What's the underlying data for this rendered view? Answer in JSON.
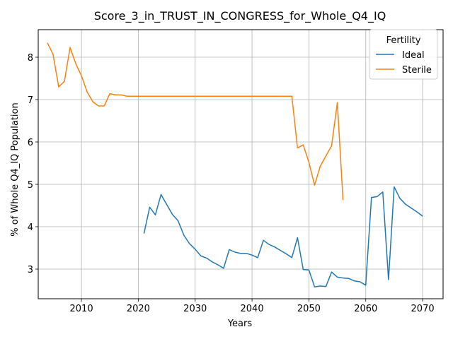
{
  "chart_data": {
    "type": "line",
    "title": "Score_3_in_TRUST_IN_CONGRESS_for_Whole_Q4_IQ",
    "xlabel": "Years",
    "ylabel": "% of Whole Q4_IQ Population",
    "xlim": [
      2002.4,
      2073.6
    ],
    "ylim": [
      2.3,
      8.65
    ],
    "xticks": [
      2010,
      2020,
      2030,
      2040,
      2050,
      2060,
      2070
    ],
    "yticks": [
      3,
      4,
      5,
      6,
      7,
      8
    ],
    "grid": true,
    "legend": {
      "title": "Fertility",
      "position": "top-right"
    },
    "series": [
      {
        "name": "Ideal",
        "color": "#1f77b4",
        "x": [
          2021,
          2022,
          2023,
          2024,
          2025,
          2026,
          2027,
          2028,
          2029,
          2030,
          2031,
          2032,
          2033,
          2034,
          2035,
          2036,
          2037,
          2038,
          2039,
          2040,
          2041,
          2042,
          2043,
          2044,
          2045,
          2046,
          2047,
          2048,
          2049,
          2050,
          2051,
          2052,
          2053,
          2054,
          2055,
          2056,
          2057,
          2058,
          2059,
          2060,
          2061,
          2062,
          2063,
          2064,
          2065,
          2066,
          2067,
          2068,
          2069,
          2070
        ],
        "y": [
          3.84,
          4.46,
          4.28,
          4.76,
          4.52,
          4.29,
          4.14,
          3.8,
          3.6,
          3.47,
          3.31,
          3.26,
          3.17,
          3.1,
          3.02,
          3.46,
          3.4,
          3.37,
          3.37,
          3.33,
          3.27,
          3.68,
          3.58,
          3.52,
          3.44,
          3.36,
          3.27,
          3.74,
          2.99,
          2.98,
          2.58,
          2.6,
          2.59,
          2.93,
          2.81,
          2.79,
          2.78,
          2.72,
          2.7,
          2.62,
          4.69,
          4.71,
          4.82,
          2.75,
          4.94,
          4.67,
          4.53,
          4.44,
          4.35,
          4.25
        ]
      },
      {
        "name": "Sterile",
        "color": "#ff7f0e",
        "x": [
          2004,
          2005,
          2006,
          2007,
          2008,
          2009,
          2010,
          2011,
          2012,
          2013,
          2014,
          2015,
          2016,
          2017,
          2018,
          2019,
          2020,
          2021,
          2022,
          2023,
          2024,
          2025,
          2026,
          2027,
          2028,
          2029,
          2030,
          2031,
          2032,
          2033,
          2034,
          2035,
          2036,
          2037,
          2038,
          2039,
          2040,
          2041,
          2042,
          2043,
          2044,
          2045,
          2046,
          2047,
          2048,
          2049,
          2050,
          2051,
          2052,
          2053,
          2054,
          2055,
          2056
        ],
        "y": [
          8.34,
          8.07,
          7.3,
          7.43,
          8.23,
          7.85,
          7.56,
          7.18,
          6.95,
          6.85,
          6.85,
          7.14,
          7.11,
          7.11,
          7.08,
          7.08,
          7.08,
          7.08,
          7.08,
          7.08,
          7.08,
          7.08,
          7.08,
          7.08,
          7.08,
          7.08,
          7.08,
          7.08,
          7.08,
          7.08,
          7.08,
          7.08,
          7.08,
          7.08,
          7.08,
          7.08,
          7.08,
          7.08,
          7.08,
          7.08,
          7.08,
          7.08,
          7.08,
          7.08,
          5.86,
          5.93,
          5.52,
          4.98,
          5.43,
          5.67,
          5.91,
          6.93,
          4.63
        ]
      }
    ]
  }
}
